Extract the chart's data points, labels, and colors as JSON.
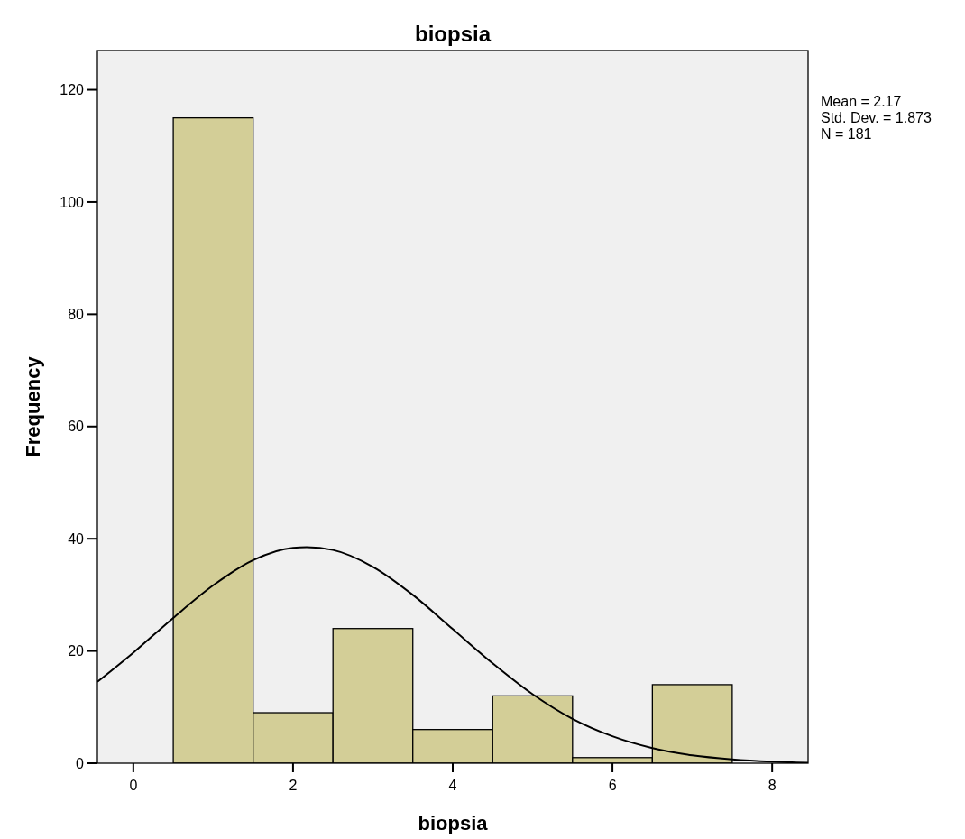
{
  "chart_data": {
    "type": "histogram",
    "title": "biopsia",
    "xlabel": "biopsia",
    "ylabel": "Frequency",
    "bins": [
      0.5,
      1.5,
      2.5,
      3.5,
      4.5,
      5.5,
      6.5,
      7.5
    ],
    "series": [
      {
        "color": "#d3ce97",
        "values": [
          115,
          9,
          24,
          6,
          12,
          1,
          14
        ]
      },
      {
        "type": "line",
        "color": "#000000",
        "x": [
          -0.45,
          0,
          0.5,
          1,
          1.5,
          2,
          2.17,
          2.5,
          3,
          3.5,
          4,
          4.5,
          5,
          5.5,
          6,
          6.5,
          7,
          7.5,
          8,
          8.45
        ],
        "values": [
          14.5,
          19.7,
          25.9,
          31.7,
          36.2,
          38.4,
          38.5,
          38,
          35,
          30,
          23.9,
          17.8,
          12.3,
          7.9,
          4.8,
          2.7,
          1.4,
          0.7,
          0.3,
          0.1
        ]
      }
    ],
    "xlim": [
      -0.45,
      8.45
    ],
    "ylim": [
      0,
      127
    ],
    "xticks": [
      0,
      2,
      4,
      6,
      8
    ],
    "yticks": [
      0,
      20,
      40,
      60,
      80,
      100,
      120
    ],
    "grid": false,
    "marker": "none",
    "line_style": "solid",
    "annotations": [
      "Mean = 2.17",
      "Std. Dev. = 1.873",
      "N = 181"
    ]
  }
}
